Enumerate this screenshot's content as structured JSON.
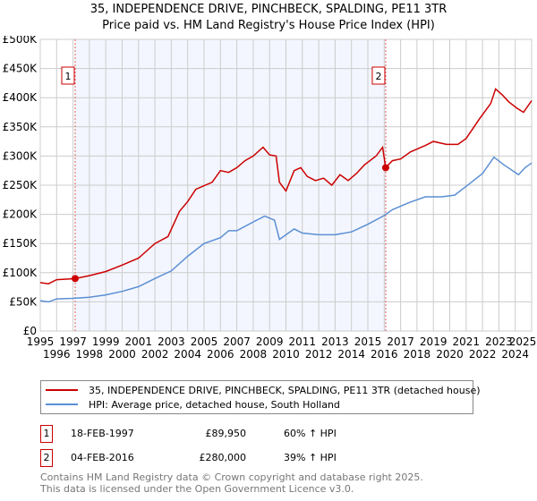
{
  "chart_data": {
    "type": "line",
    "title": "35, INDEPENDENCE DRIVE, PINCHBECK, SPALDING, PE11 3TR",
    "subtitle": "Price paid vs. HM Land Registry's House Price Index (HPI)",
    "xlim": [
      1995,
      2025
    ],
    "ylim": [
      0,
      500000
    ],
    "x_ticks": [
      "1995",
      "1996",
      "1997",
      "1998",
      "1999",
      "2000",
      "2001",
      "2002",
      "2003",
      "2004",
      "2005",
      "2006",
      "2007",
      "2008",
      "2009",
      "2010",
      "2011",
      "2012",
      "2013",
      "2014",
      "2015",
      "2016",
      "2017",
      "2018",
      "2019",
      "2020",
      "2021",
      "2022",
      "2023",
      "2024",
      "2025"
    ],
    "y_ticks": [
      {
        "v": 0,
        "label": "£0"
      },
      {
        "v": 50000,
        "label": "£50K"
      },
      {
        "v": 100000,
        "label": "£100K"
      },
      {
        "v": 150000,
        "label": "£150K"
      },
      {
        "v": 200000,
        "label": "£200K"
      },
      {
        "v": 250000,
        "label": "£250K"
      },
      {
        "v": 300000,
        "label": "£300K"
      },
      {
        "v": 350000,
        "label": "£350K"
      },
      {
        "v": 400000,
        "label": "£400K"
      },
      {
        "v": 450000,
        "label": "£450K"
      },
      {
        "v": 500000,
        "label": "£500K"
      }
    ],
    "grid": true,
    "shaded_range": [
      1997.13,
      2016.09
    ],
    "series": [
      {
        "name": "35, INDEPENDENCE DRIVE, PINCHBECK, SPALDING, PE11 3TR (detached house)",
        "color": "#cc0000",
        "x": [
          1995,
          1995.5,
          1996,
          1996.6,
          1997.13,
          1998,
          1999,
          2000,
          2001,
          2002,
          2002.8,
          2003.5,
          2004,
          2004.5,
          2005.5,
          2006,
          2006.5,
          2007,
          2007.5,
          2008,
          2008.6,
          2009,
          2009.4,
          2009.6,
          2010,
          2010.5,
          2010.9,
          2011.3,
          2011.8,
          2012.3,
          2012.8,
          2013.3,
          2013.8,
          2014.3,
          2014.8,
          2015.5,
          2015.9,
          2016.09,
          2016.5,
          2017,
          2017.6,
          2018.5,
          2019,
          2019.8,
          2020.5,
          2021,
          2021.8,
          2022.5,
          2022.8,
          2023.2,
          2023.6,
          2024.1,
          2024.5,
          2025
        ],
        "y": [
          83000,
          81000,
          88000,
          89000,
          89950,
          95000,
          102000,
          113000,
          125000,
          150000,
          162000,
          205000,
          222000,
          243000,
          255000,
          275000,
          272000,
          280000,
          292000,
          300000,
          315000,
          302000,
          300000,
          255000,
          240000,
          275000,
          280000,
          265000,
          258000,
          262000,
          250000,
          268000,
          258000,
          270000,
          285000,
          300000,
          315000,
          280000,
          292000,
          295000,
          307000,
          318000,
          325000,
          320000,
          320000,
          330000,
          363000,
          390000,
          415000,
          405000,
          393000,
          382000,
          375000,
          395000
        ]
      },
      {
        "name": "HPI: Average price, detached house, South Holland",
        "color": "#5b8fd4",
        "x": [
          1995,
          1995.5,
          1996,
          1997,
          1998,
          1999,
          2000,
          2001,
          2002,
          2003,
          2004,
          2005,
          2006,
          2006.5,
          2007,
          2008,
          2008.7,
          2009.3,
          2009.6,
          2010.5,
          2011,
          2012,
          2013,
          2014,
          2015,
          2016,
          2016.5,
          2017.5,
          2018.5,
          2019.5,
          2020.3,
          2021,
          2022,
          2022.7,
          2023.3,
          2024.2,
          2024.6,
          2025
        ],
        "y": [
          52000,
          50000,
          55000,
          56000,
          58000,
          62000,
          68000,
          76000,
          90000,
          103000,
          128000,
          150000,
          160000,
          172000,
          172000,
          187000,
          197000,
          190000,
          157000,
          175000,
          168000,
          165000,
          165000,
          170000,
          183000,
          198000,
          208000,
          220000,
          230000,
          230000,
          233000,
          248000,
          270000,
          298000,
          285000,
          268000,
          280000,
          288000
        ]
      }
    ],
    "annotations": [
      {
        "label": "1",
        "x": 1997.13,
        "y": 89950
      },
      {
        "label": "2",
        "x": 2016.09,
        "y": 280000
      }
    ]
  },
  "transactions": [
    {
      "num": "1",
      "date": "18-FEB-1997",
      "price": "£89,950",
      "hpi": "60% ↑ HPI"
    },
    {
      "num": "2",
      "date": "04-FEB-2016",
      "price": "£280,000",
      "hpi": "39% ↑ HPI"
    }
  ],
  "footer": {
    "line1": "Contains HM Land Registry data © Crown copyright and database right 2025.",
    "line2": "This data is licensed under the Open Government Licence v3.0."
  }
}
